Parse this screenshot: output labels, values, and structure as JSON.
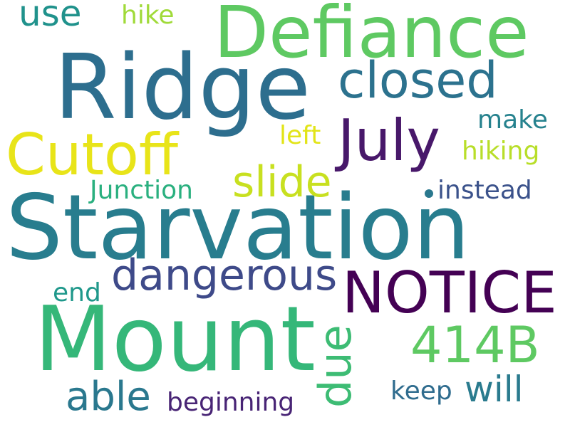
{
  "words": [
    {
      "id": "starvation",
      "text": "Starvation",
      "color": "#287d8e"
    },
    {
      "id": "ridge",
      "text": "Ridge",
      "color": "#2d6e8e"
    },
    {
      "id": "mount",
      "text": "Mount",
      "color": "#35b779"
    },
    {
      "id": "defiance",
      "text": "Defiance",
      "color": "#5ec962"
    },
    {
      "id": "notice",
      "text": "NOTICE",
      "color": "#440154"
    },
    {
      "id": "cutoff",
      "text": "Cutoff",
      "color": "#e8e419"
    },
    {
      "id": "july",
      "text": "July",
      "color": "#48186a"
    },
    {
      "id": "closed",
      "text": "closed",
      "color": "#2c728e"
    },
    {
      "id": "dangerous",
      "text": "dangerous",
      "color": "#3e4a89"
    },
    {
      "id": "414b",
      "text": "414B",
      "color": "#5ec962"
    },
    {
      "id": "slide",
      "text": "slide",
      "color": "#c8e020"
    },
    {
      "id": "due",
      "text": "due",
      "color": "#3dbc74"
    },
    {
      "id": "able",
      "text": "able",
      "color": "#2a788e"
    },
    {
      "id": "will",
      "text": "will",
      "color": "#2a7b8e"
    },
    {
      "id": "use",
      "text": "use",
      "color": "#20928c"
    },
    {
      "id": "hike",
      "text": "hike",
      "color": "#a0da39"
    },
    {
      "id": "junction",
      "text": "Junction",
      "color": "#2ab07f"
    },
    {
      "id": "beginning",
      "text": "beginning",
      "color": "#482475"
    },
    {
      "id": "instead",
      "text": "instead",
      "color": "#3b528b"
    },
    {
      "id": "make",
      "text": "make",
      "color": "#26828e"
    },
    {
      "id": "hiking",
      "text": "hiking",
      "color": "#b8de29"
    },
    {
      "id": "left",
      "text": "left",
      "color": "#e2e418"
    },
    {
      "id": "keep",
      "text": "keep",
      "color": "#2f6c8e"
    },
    {
      "id": "end",
      "text": "end",
      "color": "#1f988b"
    }
  ],
  "dot": {
    "color": "#2a788e"
  }
}
